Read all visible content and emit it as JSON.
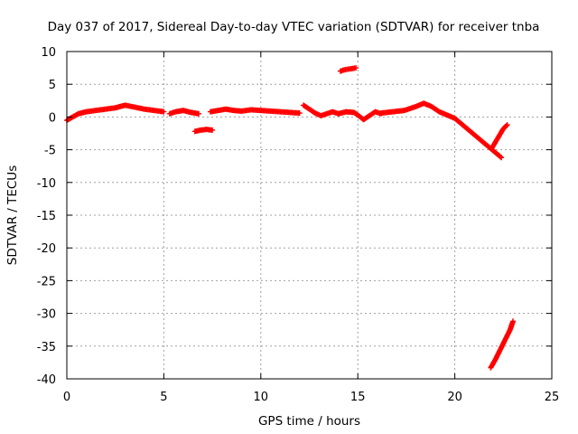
{
  "chart_data": {
    "type": "scatter",
    "title": "Day 037 of 2017, Sidereal Day-to-day VTEC variation (SDTVAR) for receiver tnba",
    "xlabel": "GPS time / hours",
    "ylabel": "SDTVAR / TECUs",
    "xlim": [
      0,
      25
    ],
    "ylim": [
      -40,
      10
    ],
    "x_ticks": [
      0,
      5,
      10,
      15,
      20,
      25
    ],
    "y_ticks": [
      10,
      5,
      0,
      -5,
      -10,
      -15,
      -20,
      -25,
      -30,
      -35,
      -40
    ],
    "grid": true,
    "series": [
      {
        "name": "SDTVAR",
        "color": "#ff0000",
        "marker": "cross",
        "segments": [
          {
            "x": [
              0.0,
              0.3,
              0.6,
              1.0,
              1.5,
              2.0,
              2.5,
              3.0,
              3.5,
              4.0,
              4.5,
              5.0
            ],
            "y": [
              -0.5,
              0.0,
              0.5,
              0.8,
              1.0,
              1.2,
              1.4,
              1.8,
              1.5,
              1.2,
              1.0,
              0.8
            ]
          },
          {
            "x": [
              5.3,
              5.6,
              6.0,
              6.4,
              6.8
            ],
            "y": [
              0.5,
              0.8,
              1.0,
              0.7,
              0.5
            ]
          },
          {
            "x": [
              6.6,
              6.9,
              7.2,
              7.5
            ],
            "y": [
              -2.2,
              -2.0,
              -1.9,
              -2.0
            ]
          },
          {
            "x": [
              7.4,
              7.8,
              8.2,
              8.6,
              9.0,
              9.5,
              10.0,
              10.5,
              11.0,
              11.5,
              12.0
            ],
            "y": [
              0.8,
              1.0,
              1.2,
              1.0,
              0.9,
              1.1,
              1.0,
              0.9,
              0.8,
              0.7,
              0.6
            ]
          },
          {
            "x": [
              12.2,
              12.5,
              12.8,
              13.1,
              13.4,
              13.7,
              14.0
            ],
            "y": [
              1.8,
              1.2,
              0.6,
              0.2,
              0.5,
              0.8,
              0.5
            ]
          },
          {
            "x": [
              14.0,
              14.4,
              14.8,
              15.0,
              15.3,
              15.6,
              15.9,
              16.2
            ],
            "y": [
              0.5,
              0.8,
              0.7,
              0.3,
              -0.4,
              0.2,
              0.8,
              0.5
            ]
          },
          {
            "x": [
              14.1,
              14.3,
              14.5,
              14.7,
              14.9
            ],
            "y": [
              7.0,
              7.2,
              7.3,
              7.4,
              7.5
            ]
          },
          {
            "x": [
              16.2,
              16.8,
              17.4,
              18.0,
              18.4,
              18.8,
              19.2,
              19.6,
              20.0,
              20.4,
              20.8,
              21.2,
              21.6,
              22.0,
              22.4
            ],
            "y": [
              0.6,
              0.8,
              1.0,
              1.6,
              2.1,
              1.6,
              0.8,
              0.3,
              -0.2,
              -1.2,
              -2.2,
              -3.2,
              -4.2,
              -5.2,
              -6.2
            ]
          },
          {
            "x": [
              21.9,
              22.1,
              22.3,
              22.5,
              22.7
            ],
            "y": [
              -4.8,
              -3.8,
              -2.8,
              -1.8,
              -1.2
            ]
          },
          {
            "x": [
              21.85,
              22.1,
              22.35,
              22.6,
              22.85,
              23.0
            ],
            "y": [
              -38.3,
              -37.0,
              -35.5,
              -34.0,
              -32.5,
              -31.2
            ]
          }
        ]
      }
    ]
  }
}
